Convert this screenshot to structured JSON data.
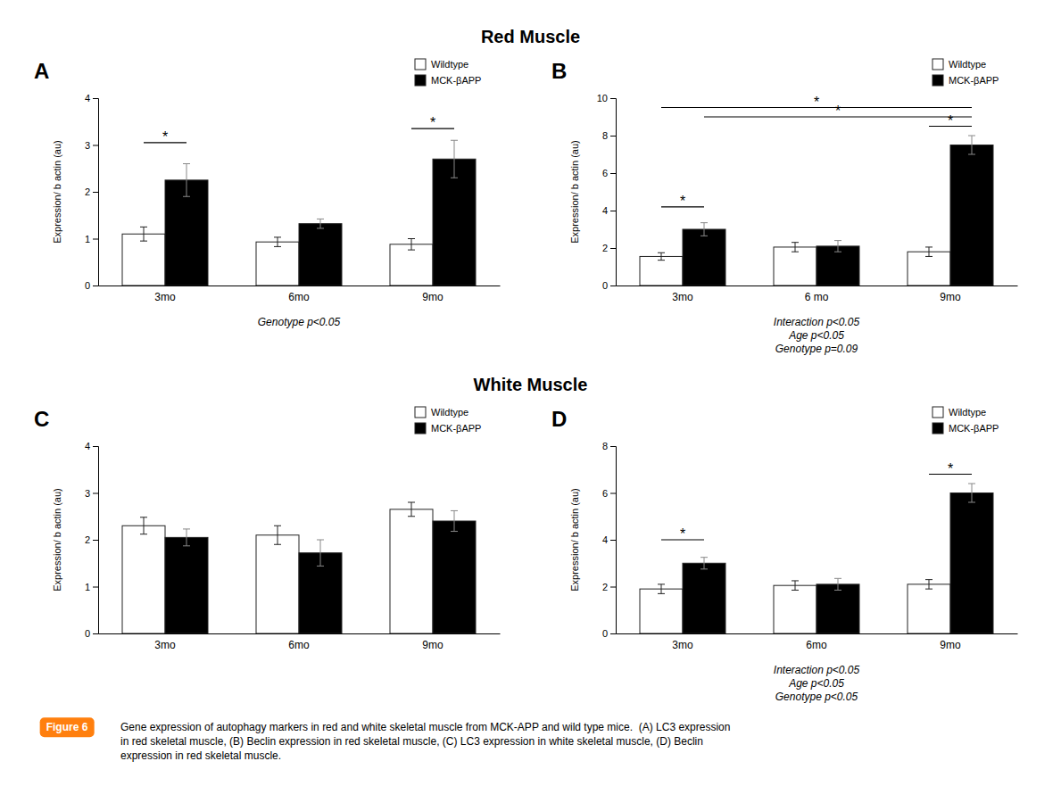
{
  "chart_data": [
    {
      "type": "bar",
      "title": "A",
      "subtitle": "Red Muscle",
      "categories": [
        "3mo",
        "6mo",
        "9mo"
      ],
      "series": [
        {
          "name": "Wildtype",
          "color": "white",
          "values": [
            1.1,
            0.93,
            0.88
          ],
          "errors": [
            0.15,
            0.1,
            0.12
          ]
        },
        {
          "name": "MCK-βAPP",
          "color": "black",
          "values": [
            2.25,
            1.32,
            2.7
          ],
          "errors": [
            0.35,
            0.1,
            0.4
          ]
        }
      ],
      "ylabel": "Expression/ b actin (au)",
      "ylim": [
        0,
        4
      ],
      "yticks": [
        0,
        1,
        2,
        3,
        4
      ],
      "grid": false,
      "legend": "upper right",
      "annotations": [
        {
          "text": "*",
          "y": 3.05,
          "from": [
            "3mo",
            "Wildtype"
          ],
          "to": [
            "3mo",
            "MCK-βAPP"
          ]
        },
        {
          "text": "*",
          "y": 3.35,
          "from": [
            "9mo",
            "Wildtype"
          ],
          "to": [
            "9mo",
            "MCK-βAPP"
          ]
        }
      ],
      "stat_text": "Genotype p<0.05"
    },
    {
      "type": "bar",
      "title": "B",
      "categories": [
        "3mo",
        "6 mo",
        "9mo"
      ],
      "series": [
        {
          "name": "Wildtype",
          "color": "white",
          "values": [
            1.55,
            2.05,
            1.8
          ],
          "errors": [
            0.2,
            0.25,
            0.25
          ]
        },
        {
          "name": "MCK-βAPP",
          "color": "black",
          "values": [
            3.0,
            2.1,
            7.5
          ],
          "errors": [
            0.35,
            0.3,
            0.5
          ]
        }
      ],
      "ylabel": "Expression/ b actin (au)",
      "ylim": [
        0,
        10
      ],
      "yticks": [
        0,
        2,
        4,
        6,
        8,
        10
      ],
      "grid": false,
      "legend": "upper right",
      "annotations": [
        {
          "text": "*",
          "y": 4.2,
          "from": [
            "3mo",
            "Wildtype"
          ],
          "to": [
            "3mo",
            "MCK-βAPP"
          ]
        },
        {
          "text": "*",
          "y": 9.5,
          "from": [
            "3mo",
            "Wildtype"
          ],
          "to": [
            "9mo",
            "MCK-βAPP"
          ]
        },
        {
          "text": "*",
          "y": 9.0,
          "from": [
            "3mo",
            "MCK-βAPP"
          ],
          "to": [
            "9mo",
            "MCK-βAPP"
          ]
        },
        {
          "text": "*",
          "y": 8.5,
          "from": [
            "9mo",
            "Wildtype"
          ],
          "to": [
            "9mo",
            "MCK-βAPP"
          ]
        }
      ],
      "stat_text": "Interaction p<0.05\nAge p<0.05\nGenotype p=0.09"
    },
    {
      "type": "bar",
      "title": "C",
      "subtitle": "White Muscle",
      "categories": [
        "3mo",
        "6mo",
        "9mo"
      ],
      "series": [
        {
          "name": "Wildtype",
          "color": "white",
          "values": [
            2.3,
            2.1,
            2.65
          ],
          "errors": [
            0.18,
            0.2,
            0.15
          ]
        },
        {
          "name": "MCK-βAPP",
          "color": "black",
          "values": [
            2.05,
            1.72,
            2.4
          ],
          "errors": [
            0.18,
            0.28,
            0.22
          ]
        }
      ],
      "ylabel": "Expression/ b actin (au)",
      "ylim": [
        0,
        4
      ],
      "yticks": [
        0,
        1,
        2,
        3,
        4
      ],
      "grid": false,
      "legend": "upper right"
    },
    {
      "type": "bar",
      "title": "D",
      "categories": [
        "3mo",
        "6mo",
        "9mo"
      ],
      "series": [
        {
          "name": "Wildtype",
          "color": "white",
          "values": [
            1.9,
            2.05,
            2.1
          ],
          "errors": [
            0.2,
            0.2,
            0.2
          ]
        },
        {
          "name": "MCK-βAPP",
          "color": "black",
          "values": [
            3.0,
            2.1,
            6.0
          ],
          "errors": [
            0.25,
            0.25,
            0.4
          ]
        }
      ],
      "ylabel": "Expression/ b actin (au)",
      "ylim": [
        0,
        8
      ],
      "yticks": [
        0,
        2,
        4,
        6,
        8
      ],
      "grid": false,
      "legend": "upper right",
      "annotations": [
        {
          "text": "*",
          "y": 4.0,
          "from": [
            "3mo",
            "Wildtype"
          ],
          "to": [
            "3mo",
            "MCK-βAPP"
          ]
        },
        {
          "text": "*",
          "y": 6.8,
          "from": [
            "9mo",
            "Wildtype"
          ],
          "to": [
            "9mo",
            "MCK-βAPP"
          ]
        }
      ],
      "stat_text": "Interaction p<0.05\nAge p<0.05\nGenotype p<0.05"
    }
  ],
  "caption_label": "Figure 6",
  "caption": "Gene expression of autophagy markers in red and white skeletal muscle from MCK-APP and wild type mice.  (A) LC3 expression\nin red skeletal muscle, (B) Beclin expression in red skeletal muscle, (C) LC3 expression in white skeletal muscle, (D) Beclin\nexpression in red skeletal muscle."
}
